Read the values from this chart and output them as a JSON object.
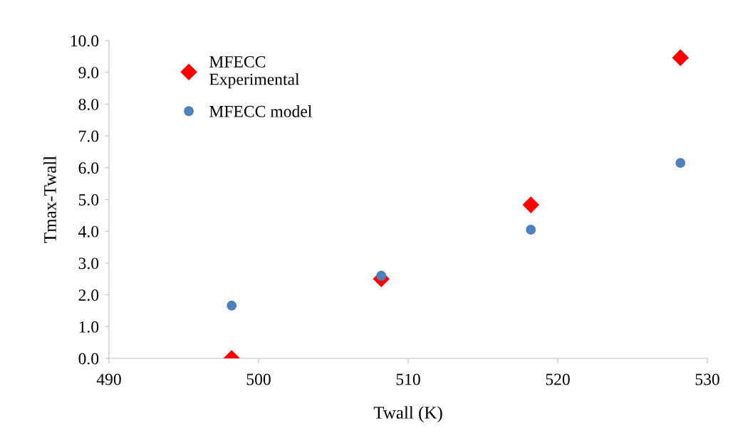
{
  "chart_data": {
    "type": "scatter",
    "xlabel": "Twall (K)",
    "ylabel": "Tmax-Twall",
    "series": [
      {
        "name": "MFECC\nExperimental",
        "color": "#ff0000",
        "marker": "diamond",
        "x": [
          498.2,
          508.2,
          518.2,
          528.2
        ],
        "values": [
          0.0,
          2.5,
          4.83,
          9.46
        ]
      },
      {
        "name": "MFECC model",
        "color": "#4f81bd",
        "marker": "circle",
        "x": [
          498.2,
          508.2,
          518.2,
          528.2
        ],
        "values": [
          1.66,
          2.6,
          4.05,
          6.15
        ]
      }
    ],
    "xlim": [
      490,
      530
    ],
    "xticks": [
      490,
      500,
      510,
      520,
      530
    ],
    "ylim": [
      0,
      10
    ],
    "yticks": [
      {
        "value": 0,
        "label": "0.0"
      },
      {
        "value": 1,
        "label": "1.0"
      },
      {
        "value": 2,
        "label": "2.0"
      },
      {
        "value": 3,
        "label": "3.0"
      },
      {
        "value": 4,
        "label": "4.0"
      },
      {
        "value": 5,
        "label": "5.0"
      },
      {
        "value": 6,
        "label": "6.0"
      },
      {
        "value": 7,
        "label": "7.0"
      },
      {
        "value": 8,
        "label": "8.0"
      },
      {
        "value": 9,
        "label": "9.0"
      },
      {
        "value": 10,
        "label": "10.0"
      }
    ],
    "grid": false,
    "legend": "top left"
  }
}
